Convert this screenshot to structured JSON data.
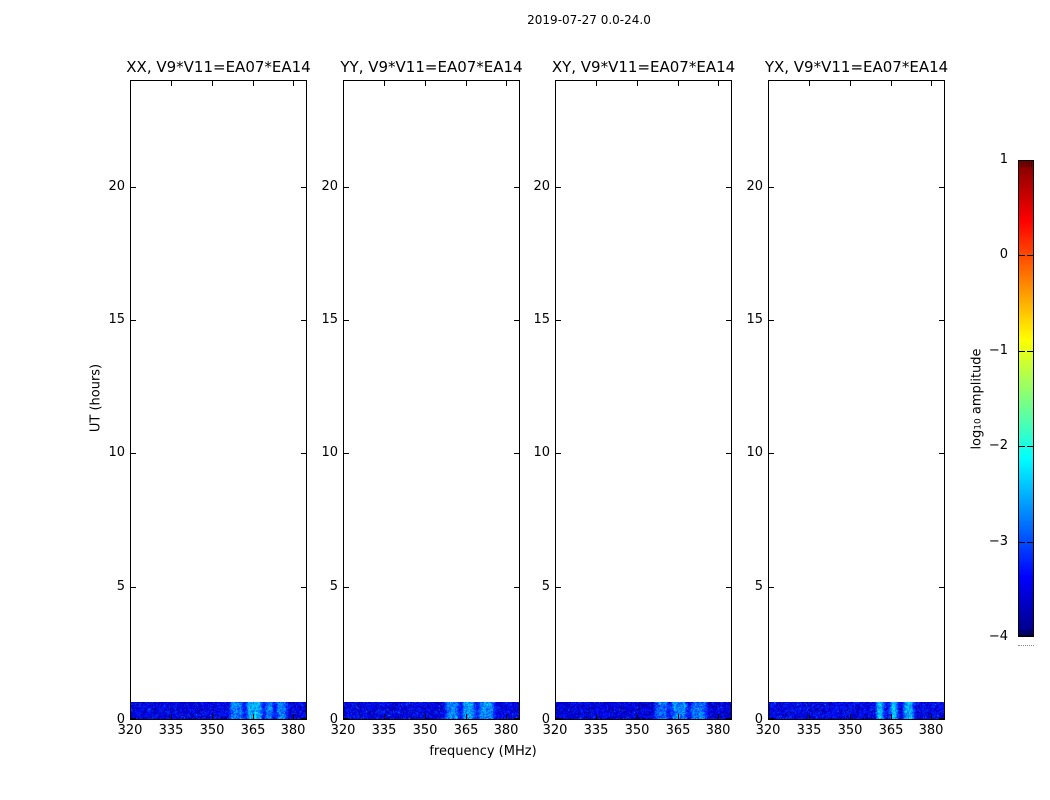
{
  "figure": {
    "title": "2019-07-27 0.0-24.0",
    "background": "#ffffff"
  },
  "chart_data": {
    "type": "heatmap",
    "title": "2019-07-27 0.0-24.0",
    "xlabel": "frequency (MHz)",
    "ylabel": "UT (hours)",
    "grid": false,
    "x_axis": {
      "range_mhz": [
        320,
        385
      ],
      "tick_values": [
        320,
        335,
        350,
        365,
        380
      ],
      "tick_labels": [
        "320",
        "335",
        "350",
        "365",
        "380"
      ]
    },
    "y_axis": {
      "range_hours": [
        0,
        24
      ],
      "tick_values": [
        0,
        5,
        10,
        15,
        20
      ],
      "tick_labels": [
        "0",
        "5",
        "10",
        "15",
        "20"
      ]
    },
    "colorbar": {
      "label_prefix": "log",
      "label_sub": "10",
      "label_suffix": " amplitude",
      "colormap": "jet",
      "range": [
        -4,
        1
      ],
      "tick_values": [
        1,
        0,
        -1,
        -2,
        -3,
        -4
      ],
      "tick_labels": [
        "1",
        "0",
        "−1",
        "−2",
        "−3",
        "−4"
      ],
      "top_color": "#7f0000",
      "bottom_color": "#00007f"
    },
    "panels": [
      {
        "title": "XX, V9*V11=EA07*EA14",
        "polarization": "XX",
        "baseline": "V9*V11=EA07*EA14",
        "band": {
          "time_start_hours": 0.0,
          "time_end_hours": 0.64,
          "base_log_amp": -3.5,
          "noise_log_amp": 0.45,
          "rfi_patches": [
            {
              "f_start": 356,
              "f_end": 362,
              "peak_log_amp": -2.8
            },
            {
              "f_start": 362,
              "f_end": 369,
              "peak_log_amp": -2.55
            },
            {
              "f_start": 369,
              "f_end": 373,
              "peak_log_amp": -2.7
            },
            {
              "f_start": 373,
              "f_end": 378,
              "peak_log_amp": -2.75
            }
          ]
        }
      },
      {
        "title": "YY, V9*V11=EA07*EA14",
        "polarization": "YY",
        "baseline": "V9*V11=EA07*EA14",
        "band": {
          "time_start_hours": 0.0,
          "time_end_hours": 0.64,
          "base_log_amp": -3.5,
          "noise_log_amp": 0.45,
          "rfi_patches": [
            {
              "f_start": 357,
              "f_end": 363,
              "peak_log_amp": -2.75
            },
            {
              "f_start": 363,
              "f_end": 369,
              "peak_log_amp": -2.6
            },
            {
              "f_start": 369,
              "f_end": 376,
              "peak_log_amp": -2.7
            }
          ]
        }
      },
      {
        "title": "XY, V9*V11=EA07*EA14",
        "polarization": "XY",
        "baseline": "V9*V11=EA07*EA14",
        "band": {
          "time_start_hours": 0.0,
          "time_end_hours": 0.64,
          "base_log_amp": -3.55,
          "noise_log_amp": 0.45,
          "rfi_patches": [
            {
              "f_start": 356,
              "f_end": 362,
              "peak_log_amp": -2.9
            },
            {
              "f_start": 362,
              "f_end": 369,
              "peak_log_amp": -2.75
            },
            {
              "f_start": 369,
              "f_end": 376,
              "peak_log_amp": -2.85
            }
          ]
        }
      },
      {
        "title": "YX, V9*V11=EA07*EA14",
        "polarization": "YX",
        "baseline": "V9*V11=EA07*EA14",
        "band": {
          "time_start_hours": 0.0,
          "time_end_hours": 0.64,
          "base_log_amp": -3.5,
          "noise_log_amp": 0.45,
          "rfi_patches": [
            {
              "f_start": 359,
              "f_end": 363,
              "peak_log_amp": -2.45
            },
            {
              "f_start": 364,
              "f_end": 368,
              "peak_log_amp": -2.4
            },
            {
              "f_start": 369,
              "f_end": 374,
              "peak_log_amp": -2.55
            }
          ]
        }
      }
    ]
  }
}
